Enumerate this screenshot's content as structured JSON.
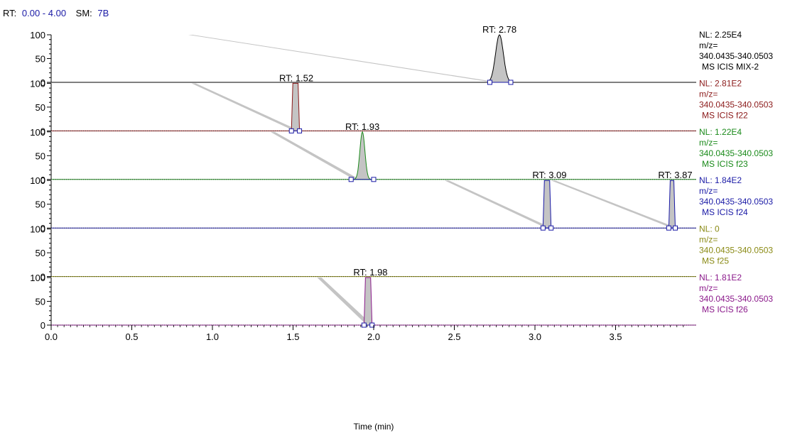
{
  "header": {
    "rt_label": "RT:",
    "rt_range": "0.00 - 4.00",
    "sm_label": "SM:",
    "sm_value": "7B",
    "value_color": "#1a1aa6"
  },
  "chart_data": {
    "type": "line",
    "xlabel": "Time (min)",
    "xlim": [
      0,
      4.0
    ],
    "xticks": [
      "0.0",
      "0.5",
      "1.0",
      "1.5",
      "2.0",
      "2.5",
      "3.0",
      "3.5"
    ],
    "ylim": [
      0,
      100
    ],
    "yticks": [
      "0",
      "50",
      "100"
    ],
    "panels": [
      {
        "color": "#000000",
        "nl": "NL: 2.25E4",
        "mz_label": "m/z=",
        "mz_range": "340.0435-340.0503",
        "scan": "MS  ICIS MIX-2",
        "peaks": [
          {
            "rt": 2.78,
            "label": "RT: 2.78",
            "width": 0.055,
            "start": 2.72,
            "end": 2.85,
            "height": 100,
            "shape": "gauss",
            "tail": [
              0.85,
              100
            ]
          }
        ]
      },
      {
        "color": "#8b1a1a",
        "nl": "NL: 2.81E2",
        "mz_label": "m/z=",
        "mz_range": "340.0435-340.0503",
        "scan": "MS  ICIS f22",
        "peaks": [
          {
            "rt": 1.52,
            "label": "RT: 1.52",
            "width": 0.0,
            "start": 1.49,
            "end": 1.54,
            "height": 100,
            "shape": "flat",
            "tail": [
              0.87,
              100
            ]
          }
        ]
      },
      {
        "color": "#1a8a1a",
        "nl": "NL: 1.22E4",
        "mz_label": "m/z=",
        "mz_range": "340.0435-340.0503",
        "scan": "MS  ICIS f23",
        "peaks": [
          {
            "rt": 1.93,
            "label": "RT: 1.93",
            "width": 0.035,
            "start": 1.86,
            "end": 2.0,
            "height": 100,
            "shape": "gauss",
            "tail": [
              1.36,
              100
            ]
          }
        ]
      },
      {
        "color": "#1a1aa6",
        "nl": "NL: 1.84E2",
        "mz_label": "m/z=",
        "mz_range": "340.0435-340.0503",
        "scan": "MS  ICIS f24",
        "peaks": [
          {
            "rt": 3.09,
            "label": "RT: 3.09",
            "width": 0.0,
            "start": 3.05,
            "end": 3.1,
            "height": 100,
            "shape": "flat",
            "tail": [
              2.44,
              100
            ]
          },
          {
            "rt": 3.87,
            "label": "RT: 3.87",
            "width": 0.0,
            "start": 3.83,
            "end": 3.87,
            "height": 100,
            "shape": "flat",
            "tail": [
              3.1,
              100
            ]
          }
        ]
      },
      {
        "color": "#8a8a14",
        "nl": "NL: 0",
        "mz_label": "m/z=",
        "mz_range": "340.0435-340.0503",
        "scan": "MS f25",
        "peaks": []
      },
      {
        "color": "#8b1a8b",
        "nl": "NL: 1.81E2",
        "mz_label": "m/z=",
        "mz_range": "340.0435-340.0503",
        "scan": "MS  ICIS f26",
        "peaks": [
          {
            "rt": 1.98,
            "label": "RT: 1.98",
            "width": 0.0,
            "start": 1.94,
            "end": 1.99,
            "height": 100,
            "shape": "flat",
            "tail": [
              1.65,
              100
            ]
          }
        ]
      }
    ]
  }
}
